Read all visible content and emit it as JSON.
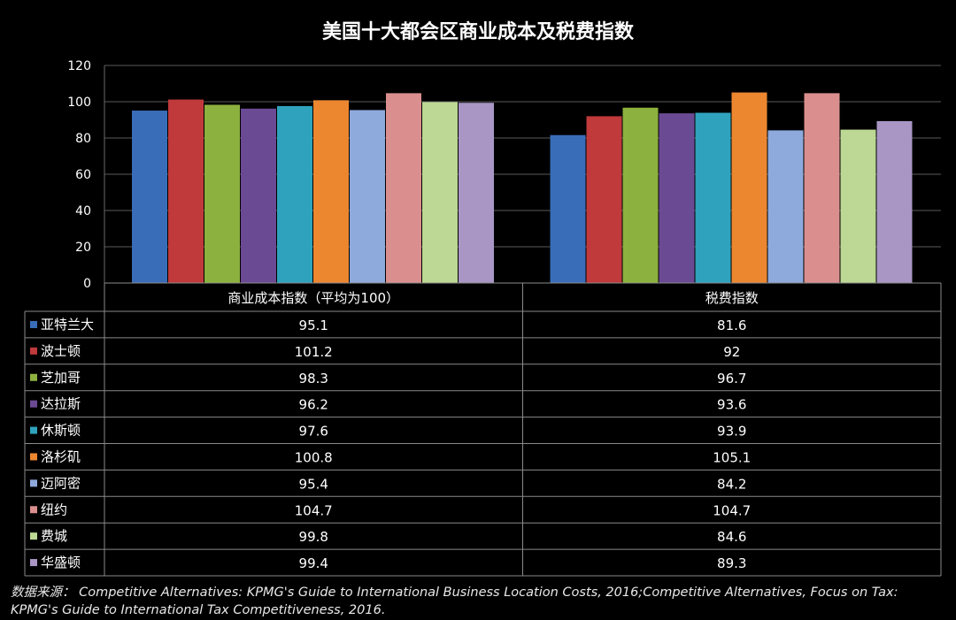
{
  "chart_data": {
    "type": "bar",
    "title": "美国十大都会区商业成本及税费指数",
    "categories": [
      "商业成本指数（平均为100）",
      "税费指数"
    ],
    "ylim": [
      0,
      120
    ],
    "yticks": [
      0,
      20,
      40,
      60,
      80,
      100,
      120
    ],
    "grid": true,
    "legend": "table",
    "series": [
      {
        "name": "亚特兰大",
        "color": "#3a6db8",
        "values": [
          95.1,
          81.6
        ],
        "labels": [
          "95.1",
          "81.6"
        ]
      },
      {
        "name": "波士顿",
        "color": "#c0393b",
        "values": [
          101.2,
          92
        ],
        "labels": [
          "101.2",
          "92"
        ]
      },
      {
        "name": "芝加哥",
        "color": "#8db13f",
        "values": [
          98.3,
          96.7
        ],
        "labels": [
          "98.3",
          "96.7"
        ]
      },
      {
        "name": "达拉斯",
        "color": "#6b4a94",
        "values": [
          96.2,
          93.6
        ],
        "labels": [
          "96.2",
          "93.6"
        ]
      },
      {
        "name": "休斯顿",
        "color": "#2fa3bd",
        "values": [
          97.6,
          93.9
        ],
        "labels": [
          "97.6",
          "93.9"
        ]
      },
      {
        "name": "洛杉矶",
        "color": "#ec8730",
        "values": [
          100.8,
          105.1
        ],
        "labels": [
          "100.8",
          "105.1"
        ]
      },
      {
        "name": "迈阿密",
        "color": "#8ea9dc",
        "values": [
          95.4,
          84.2
        ],
        "labels": [
          "95.4",
          "84.2"
        ]
      },
      {
        "name": "纽约",
        "color": "#da8f8e",
        "values": [
          104.7,
          104.7
        ],
        "labels": [
          "104.7",
          "104.7"
        ]
      },
      {
        "name": "费城",
        "color": "#bcd894",
        "values": [
          99.8,
          84.6
        ],
        "labels": [
          "99.8",
          "84.6"
        ]
      },
      {
        "name": "华盛顿",
        "color": "#a996c5",
        "values": [
          99.4,
          89.3
        ],
        "labels": [
          "99.4",
          "89.3"
        ]
      }
    ]
  },
  "source": "数据来源： Competitive Alternatives: KPMG's Guide to International Business Location Costs, 2016;Competitive Alternatives, Focus on Tax: KPMG's Guide to International Tax Competitiveness, 2016."
}
